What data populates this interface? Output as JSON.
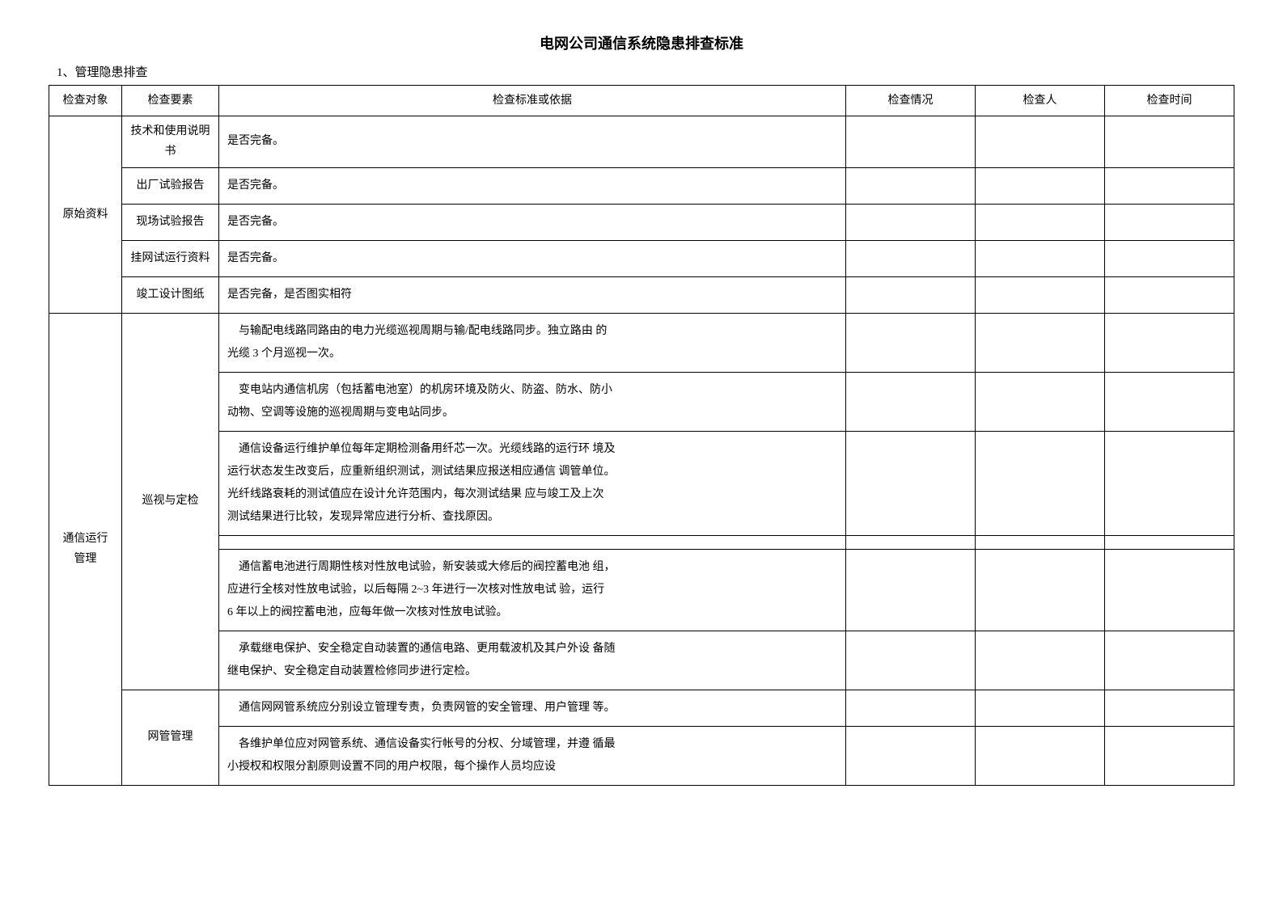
{
  "document": {
    "title": "电网公司通信系统隐患排查标准",
    "section_label": "1、管理隐患排查"
  },
  "headers": {
    "col_target": "检查对象",
    "col_element": "检查要素",
    "col_standard": "检查标准或依据",
    "col_status": "检查情况",
    "col_person": "检查人",
    "col_time": "检查时间"
  },
  "groups": [
    {
      "target": "原始资料",
      "rows": [
        {
          "element": "技术和使用说明书",
          "standard": "是否完备。"
        },
        {
          "element": "出厂试验报告",
          "standard": "是否完备。"
        },
        {
          "element": "现场试验报告",
          "standard": "是否完备。"
        },
        {
          "element": "挂网试运行资料",
          "standard": "是否完备。"
        },
        {
          "element": "竣工设计图纸",
          "standard": "是否完备，是否图实相符"
        }
      ]
    },
    {
      "target": "通信运行 管理",
      "subgroups": [
        {
          "element": "巡视与定检",
          "rows": [
            {
              "standard_lines": [
                "与输配电线路同路由的电力光缆巡视周期与输/配电线路同步。独立路由 的",
                "光缆 3 个月巡视一次。"
              ]
            },
            {
              "standard_lines": [
                "变电站内通信机房（包括蓄电池室）的机房环境及防火、防盗、防水、防小",
                "动物、空调等设施的巡视周期与变电站同步。"
              ]
            },
            {
              "standard_lines": [
                "通信设备运行维护单位每年定期检测备用纤芯一次。光缆线路的运行环 境及",
                "运行状态发生改变后，应重新组织测试，测试结果应报送相应通信 调管单位。",
                "光纤线路衰耗的测试值应在设计允许范围内，每次测试结果 应与竣工及上次",
                "测试结果进行比较，发现异常应进行分析、查找原因。"
              ]
            },
            {
              "standard_lines": [
                ""
              ]
            },
            {
              "standard_lines": [
                "通信蓄电池进行周期性核对性放电试验，新安装或大修后的阀控蓄电池 组，",
                "应进行全核对性放电试验，以后每隔 2~3 年进行一次核对性放电试 验，运行",
                "6 年以上的阀控蓄电池，应每年做一次核对性放电试验。"
              ]
            },
            {
              "standard_lines": [
                "承载继电保护、安全稳定自动装置的通信电路、更用载波机及其户外设 备随",
                "继电保护、安全稳定自动装置检修同步进行定检。"
              ]
            }
          ]
        },
        {
          "element": "网管管理",
          "rows": [
            {
              "standard_lines": [
                "通信网网管系统应分别设立管理专责，负责网管的安全管理、用户管理 等。",
                ""
              ]
            },
            {
              "standard_lines": [
                "各维护单位应对网管系统、通信设备实行帐号的分权、分域管理，并遵 循最",
                "小授权和权限分割原则设置不同的用户权限，每个操作人员均应设"
              ]
            }
          ]
        }
      ]
    }
  ]
}
